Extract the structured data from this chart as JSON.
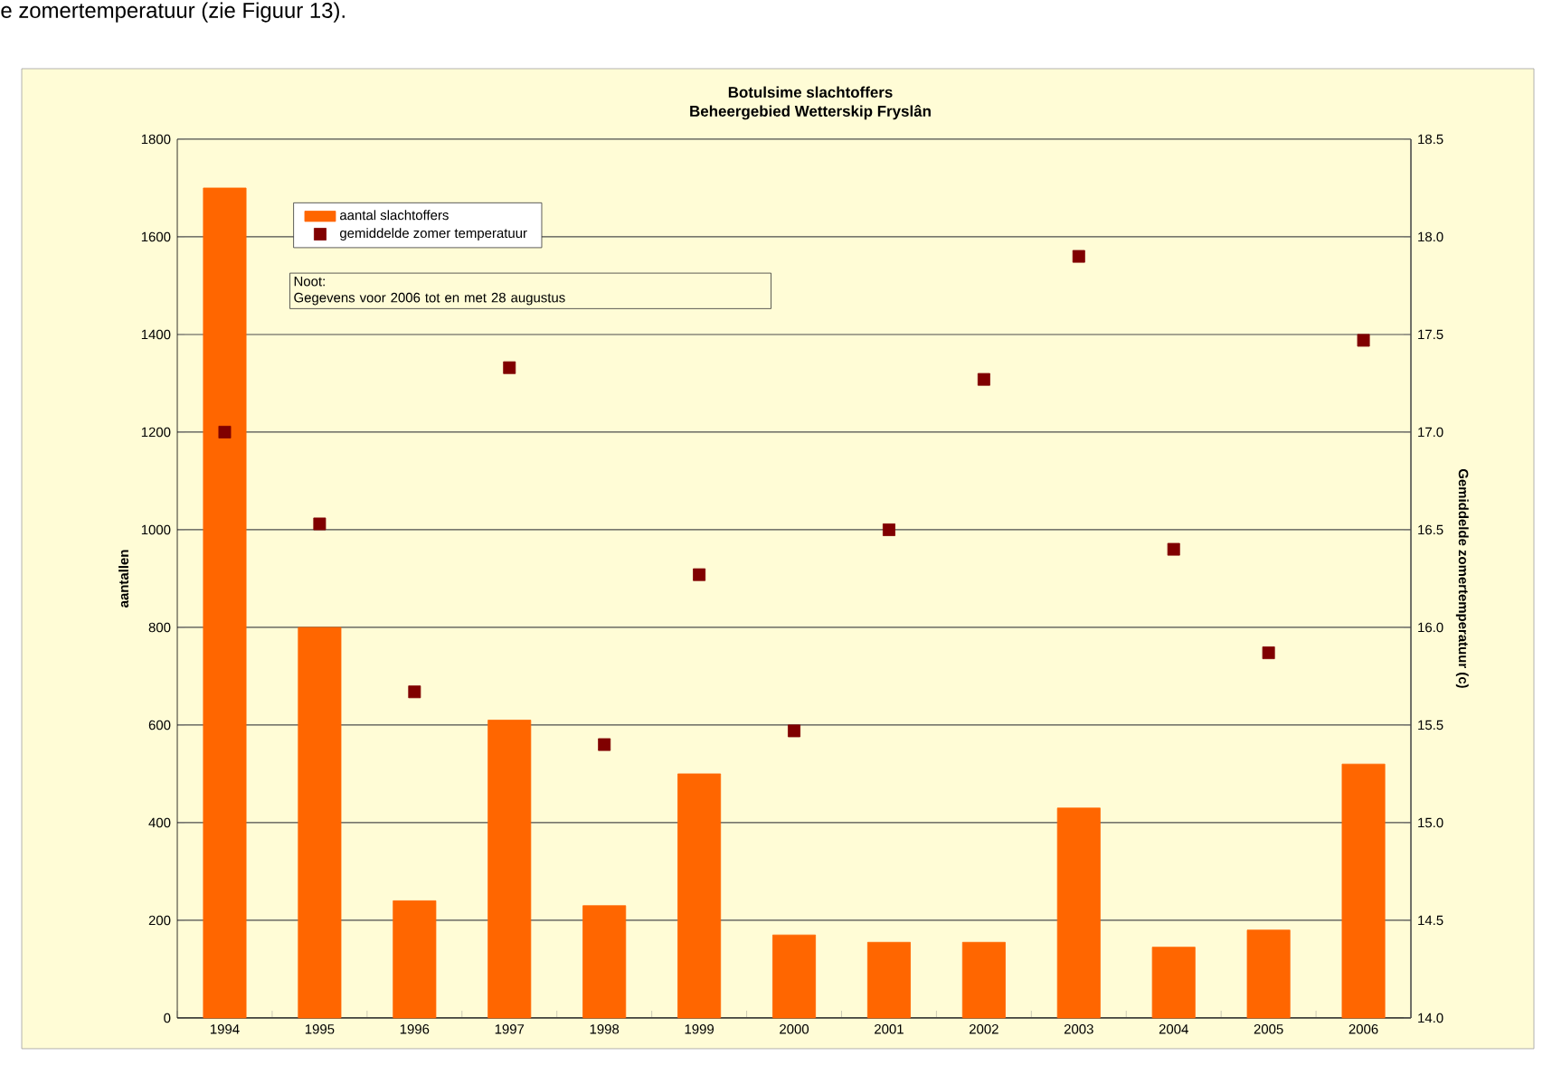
{
  "chart_data": {
    "type": "bar",
    "title": "Botulsime slachtoffers",
    "subtitle": "Beheergebied Wetterskip Fryslân",
    "ylabel": "aantallen",
    "y2label": "Gemiddelde zomertemperatuur (c)",
    "categories": [
      "1994",
      "1995",
      "1996",
      "1997",
      "1998",
      "1999",
      "2000",
      "2001",
      "2002",
      "2003",
      "2004",
      "2005",
      "2006"
    ],
    "series": [
      {
        "name": "aantal slachtoffers",
        "color": "#ff6600",
        "values": [
          1700,
          800,
          240,
          610,
          230,
          500,
          170,
          155,
          155,
          430,
          145,
          180,
          520
        ]
      },
      {
        "name": "gemiddelde zomer temperatuur",
        "type": "scatter",
        "axis": "y2",
        "color": "#800000",
        "marker": "square",
        "values": [
          17.0,
          16.53,
          15.67,
          17.33,
          15.4,
          16.27,
          15.47,
          16.5,
          17.27,
          17.9,
          16.4,
          15.87,
          17.47
        ]
      }
    ],
    "ylim": [
      0,
      1800
    ],
    "yticks": [
      0,
      200,
      400,
      600,
      800,
      1000,
      1200,
      1400,
      1600,
      1800
    ],
    "y2lim": [
      14,
      18.5
    ],
    "y2ticks": [
      {
        "value": 14,
        "label": "14.0"
      },
      {
        "value": 14.5,
        "label": "14.5"
      },
      {
        "value": 15,
        "label": "15.0"
      },
      {
        "value": 15.5,
        "label": "15.5"
      },
      {
        "value": 16,
        "label": "16.0"
      },
      {
        "value": 16.5,
        "label": "16.5"
      },
      {
        "value": 17,
        "label": "17.0"
      },
      {
        "value": 17.5,
        "label": "17.5"
      },
      {
        "value": 18,
        "label": "18.0"
      },
      {
        "value": 18.5,
        "label": "18.5"
      }
    ],
    "grid": "y",
    "legend": "top left",
    "annotations": [
      "Noot:",
      "Gegevens voor 2006 tot en met 28 augustus",
      "e zomertemperatuur (zie Figuur 13)."
    ]
  }
}
